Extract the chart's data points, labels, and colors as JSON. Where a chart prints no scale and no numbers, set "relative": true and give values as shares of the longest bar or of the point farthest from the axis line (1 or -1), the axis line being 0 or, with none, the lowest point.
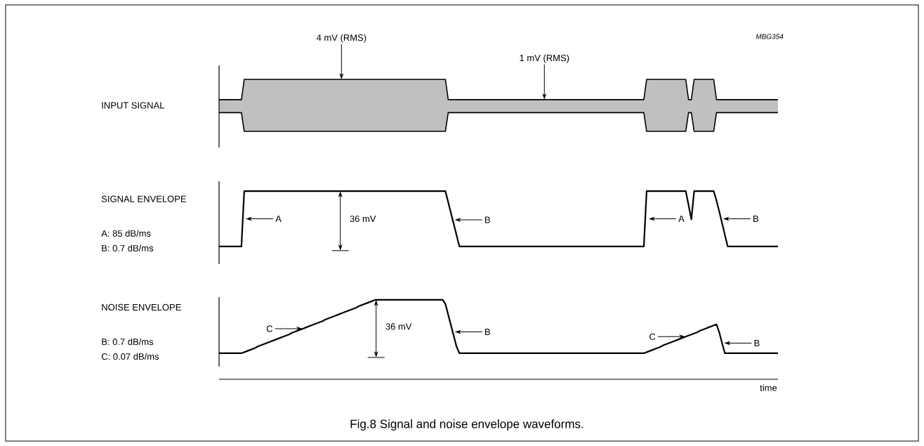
{
  "chart_data": [
    {
      "type": "area",
      "subtitle": "MBG354",
      "ylabel": "INPUT SIGNAL",
      "relative": true,
      "tick_labels": false,
      "categories": [
        null,
        null,
        null,
        null,
        null,
        null,
        null,
        null,
        null,
        null,
        null,
        null,
        null,
        null,
        null,
        null,
        null,
        null,
        null,
        null,
        null,
        null,
        null,
        null,
        null,
        null,
        null,
        null,
        null,
        null,
        null,
        null,
        null,
        null,
        null,
        null,
        null,
        null,
        null,
        null,
        null,
        null,
        null,
        null,
        null,
        null,
        null,
        null,
        null,
        null,
        null,
        null,
        null,
        null,
        null,
        null,
        null,
        null,
        null,
        null,
        null,
        null,
        null,
        null,
        null,
        null,
        null,
        null,
        null,
        null,
        null,
        null,
        null,
        null,
        null,
        null,
        null,
        null,
        null,
        null,
        null,
        null,
        null,
        null,
        null,
        null,
        null,
        null,
        null,
        null,
        null,
        null,
        null,
        null,
        null,
        null,
        null,
        null,
        null,
        null,
        null,
        null,
        null,
        null,
        null,
        null,
        null,
        null,
        null,
        null,
        null,
        null,
        null,
        null,
        null,
        null,
        null,
        null,
        null,
        null,
        null,
        null,
        null,
        null,
        null,
        null,
        null,
        null,
        null,
        null,
        null,
        null,
        null,
        null,
        null,
        null,
        null,
        null,
        null,
        null,
        null,
        null,
        null,
        null,
        null,
        null,
        null,
        null,
        null,
        null,
        null,
        null,
        null,
        null,
        null,
        null,
        null,
        null,
        null,
        null,
        null,
        null,
        null,
        null,
        null,
        null,
        null,
        null,
        null,
        null,
        null,
        null,
        null,
        null,
        null,
        null,
        null,
        null,
        null,
        null,
        null,
        null,
        null,
        null,
        null,
        null,
        null,
        null,
        null,
        null,
        null,
        null,
        null,
        null,
        null,
        null,
        null,
        null,
        null,
        null,
        null
      ],
      "series": [
        {
          "color": "#c0c0c0",
          "values": [
            0.61,
            0.61,
            0.61,
            0.61,
            0.61,
            0.61,
            0.61,
            0.61,
            0.61,
            1,
            1,
            1,
            1,
            1,
            1,
            1,
            1,
            1,
            1,
            1,
            1,
            1,
            1,
            1,
            1,
            1,
            1,
            1,
            1,
            1,
            1,
            1,
            1,
            1,
            1,
            1,
            1,
            1,
            1,
            1,
            1,
            1,
            1,
            1,
            1,
            1,
            1,
            1,
            1,
            1,
            1,
            1,
            1,
            1,
            1,
            1,
            1,
            1,
            1,
            1,
            1,
            1,
            1,
            1,
            1,
            1,
            1,
            1,
            1,
            1,
            1,
            1,
            1,
            1,
            1,
            1,
            1,
            1,
            1,
            1,
            1,
            1,
            0.61,
            0.61,
            0.61,
            0.61,
            0.61,
            0.61,
            0.61,
            0.61,
            0.61,
            0.61,
            0.61,
            0.61,
            0.61,
            0.61,
            0.61,
            0.61,
            0.61,
            0.61,
            0.61,
            0.61,
            0.61,
            0.61,
            0.61,
            0.61,
            0.61,
            0.61,
            0.61,
            0.61,
            0.61,
            0.61,
            0.61,
            0.61,
            0.61,
            0.61,
            0.61,
            0.61,
            0.61,
            0.61,
            0.61,
            0.61,
            0.61,
            0.61,
            0.61,
            0.61,
            0.61,
            0.61,
            0.61,
            0.61,
            0.61,
            0.61,
            0.61,
            0.61,
            0.61,
            0.61,
            0.61,
            0.61,
            0.61,
            0.61,
            0.61,
            0.61,
            0.61,
            0.61,
            0.61,
            0.61,
            0.61,
            0.61,
            0.61,
            0.61,
            0.61,
            0.61,
            0.61,
            1,
            1,
            1,
            1,
            1,
            1,
            1,
            1,
            1,
            1,
            1,
            1,
            1,
            1,
            1,
            0.61,
            0.61,
            1,
            1,
            1,
            1,
            1,
            1,
            1,
            1,
            0.61,
            0.61,
            0.61,
            0.61,
            0.61,
            0.61,
            0.61,
            0.61,
            0.61,
            0.61,
            0.61,
            0.61,
            0.61,
            0.61,
            0.61,
            0.61,
            0.61,
            0.61,
            0.61,
            0.61,
            0.61,
            0.61,
            0.61
          ]
        },
        {
          "color": "#ffffff",
          "values": [
            0.36,
            0.36,
            0.36,
            0.36,
            0.36,
            0.36,
            0.36,
            0.36,
            0.36,
            0,
            0,
            0,
            0,
            0,
            0,
            0,
            0,
            0,
            0,
            0,
            0,
            0,
            0,
            0,
            0,
            0,
            0,
            0,
            0,
            0,
            0,
            0,
            0,
            0,
            0,
            0,
            0,
            0,
            0,
            0,
            0,
            0,
            0,
            0,
            0,
            0,
            0,
            0,
            0,
            0,
            0,
            0,
            0,
            0,
            0,
            0,
            0,
            0,
            0,
            0,
            0,
            0,
            0,
            0,
            0,
            0,
            0,
            0,
            0,
            0,
            0,
            0,
            0,
            0,
            0,
            0,
            0,
            0,
            0,
            0,
            0,
            0,
            0.36,
            0.36,
            0.36,
            0.36,
            0.36,
            0.36,
            0.36,
            0.36,
            0.36,
            0.36,
            0.36,
            0.36,
            0.36,
            0.36,
            0.36,
            0.36,
            0.36,
            0.36,
            0.36,
            0.36,
            0.36,
            0.36,
            0.36,
            0.36,
            0.36,
            0.36,
            0.36,
            0.36,
            0.36,
            0.36,
            0.36,
            0.36,
            0.36,
            0.36,
            0.36,
            0.36,
            0.36,
            0.36,
            0.36,
            0.36,
            0.36,
            0.36,
            0.36,
            0.36,
            0.36,
            0.36,
            0.36,
            0.36,
            0.36,
            0.36,
            0.36,
            0.36,
            0.36,
            0.36,
            0.36,
            0.36,
            0.36,
            0.36,
            0.36,
            0.36,
            0.36,
            0.36,
            0.36,
            0.36,
            0.36,
            0.36,
            0.36,
            0.36,
            0.36,
            0.36,
            0.36,
            0,
            0,
            0,
            0,
            0,
            0,
            0,
            0,
            0,
            0,
            0,
            0,
            0,
            0,
            0,
            0.36,
            0.36,
            0,
            0,
            0,
            0,
            0,
            0,
            0,
            0,
            0.36,
            0.36,
            0.36,
            0.36,
            0.36,
            0.36,
            0.36,
            0.36,
            0.36,
            0.36,
            0.36,
            0.36,
            0.36,
            0.36,
            0.36,
            0.36,
            0.36,
            0.36,
            0.36,
            0.36,
            0.36,
            0.36,
            0.36
          ]
        }
      ],
      "annotations": [
        "4 mV (RMS)",
        "1 mV (RMS)"
      ]
    },
    {
      "type": "line",
      "ylabel": "SIGNAL ENVELOPE",
      "relative": true,
      "tick_labels": false,
      "categories": [
        null,
        null,
        null,
        null,
        null,
        null,
        null,
        null,
        null,
        null,
        null,
        null,
        null,
        null,
        null,
        null,
        null,
        null,
        null,
        null,
        null,
        null,
        null,
        null,
        null,
        null,
        null,
        null,
        null,
        null,
        null,
        null,
        null,
        null,
        null,
        null,
        null,
        null,
        null,
        null,
        null,
        null,
        null,
        null,
        null,
        null,
        null,
        null,
        null,
        null,
        null,
        null,
        null,
        null,
        null,
        null,
        null,
        null,
        null,
        null,
        null,
        null,
        null,
        null,
        null,
        null,
        null,
        null,
        null,
        null,
        null,
        null,
        null,
        null,
        null,
        null,
        null,
        null,
        null,
        null,
        null,
        null,
        null,
        null,
        null,
        null,
        null,
        null,
        null,
        null,
        null,
        null,
        null,
        null,
        null,
        null,
        null,
        null,
        null,
        null,
        null,
        null,
        null,
        null,
        null,
        null,
        null,
        null,
        null,
        null,
        null,
        null,
        null,
        null,
        null,
        null,
        null,
        null,
        null,
        null,
        null,
        null,
        null,
        null,
        null,
        null,
        null,
        null,
        null,
        null,
        null,
        null,
        null,
        null,
        null,
        null,
        null,
        null,
        null,
        null,
        null,
        null,
        null,
        null,
        null,
        null,
        null,
        null,
        null,
        null,
        null,
        null,
        null,
        null,
        null,
        null,
        null,
        null,
        null,
        null,
        null,
        null,
        null,
        null,
        null,
        null,
        null,
        null,
        null,
        null,
        null,
        null,
        null,
        null,
        null,
        null,
        null,
        null,
        null,
        null,
        null,
        null,
        null,
        null,
        null,
        null,
        null,
        null,
        null,
        null,
        null,
        null,
        null,
        null,
        null,
        null,
        null,
        null,
        null,
        null,
        null
      ],
      "series": [
        {
          "color": "#000000",
          "values": [
            0,
            0,
            0,
            0,
            0,
            0,
            0,
            0,
            0,
            1,
            1,
            1,
            1,
            1,
            1,
            1,
            1,
            1,
            1,
            1,
            1,
            1,
            1,
            1,
            1,
            1,
            1,
            1,
            1,
            1,
            1,
            1,
            1,
            1,
            1,
            1,
            1,
            1,
            1,
            1,
            1,
            1,
            1,
            1,
            1,
            1,
            1,
            1,
            1,
            1,
            1,
            1,
            1,
            1,
            1,
            1,
            1,
            1,
            1,
            1,
            1,
            1,
            1,
            1,
            1,
            1,
            1,
            1,
            1,
            1,
            1,
            1,
            1,
            1,
            1,
            1,
            1,
            1,
            1,
            1,
            1,
            1,
            0.8,
            0.6,
            0.4,
            0.2,
            0,
            0,
            0,
            0,
            0,
            0,
            0,
            0,
            0,
            0,
            0,
            0,
            0,
            0,
            0,
            0,
            0,
            0,
            0,
            0,
            0,
            0,
            0,
            0,
            0,
            0,
            0,
            0,
            0,
            0,
            0,
            0,
            0,
            0,
            0,
            0,
            0,
            0,
            0,
            0,
            0,
            0,
            0,
            0,
            0,
            0,
            0,
            0,
            0,
            0,
            0,
            0,
            0,
            0,
            0,
            0,
            0,
            0,
            0,
            0,
            0,
            0,
            0,
            0,
            0,
            0,
            0,
            1,
            1,
            1,
            1,
            1,
            1,
            1,
            1,
            1,
            1,
            1,
            1,
            1,
            1,
            1,
            0.75,
            0.49,
            1,
            1,
            1,
            1,
            1,
            1,
            1,
            1,
            0.83,
            0.63,
            0.42,
            0.21,
            0,
            0,
            0,
            0,
            0,
            0,
            0,
            0,
            0,
            0,
            0,
            0,
            0,
            0,
            0,
            0,
            0,
            0,
            0
          ]
        }
      ],
      "annotations": [
        "A: 85 dB/ms",
        "B: 0.7 dB/ms",
        "A",
        "36 mV",
        "B",
        "A",
        "B"
      ]
    },
    {
      "type": "line",
      "title": "Fig.8  Signal and noise envelope waveforms.",
      "ylabel": "NOISE ENVELOPE",
      "xlabel": "time",
      "relative": true,
      "tick_labels": false,
      "categories": [
        null,
        null,
        null,
        null,
        null,
        null,
        null,
        null,
        null,
        null,
        null,
        null,
        null,
        null,
        null,
        null,
        null,
        null,
        null,
        null,
        null,
        null,
        null,
        null,
        null,
        null,
        null,
        null,
        null,
        null,
        null,
        null,
        null,
        null,
        null,
        null,
        null,
        null,
        null,
        null,
        null,
        null,
        null,
        null,
        null,
        null,
        null,
        null,
        null,
        null,
        null,
        null,
        null,
        null,
        null,
        null,
        null,
        null,
        null,
        null,
        null,
        null,
        null,
        null,
        null,
        null,
        null,
        null,
        null,
        null,
        null,
        null,
        null,
        null,
        null,
        null,
        null,
        null,
        null,
        null,
        null,
        null,
        null,
        null,
        null,
        null,
        null,
        null,
        null,
        null,
        null,
        null,
        null,
        null,
        null,
        null,
        null,
        null,
        null,
        null,
        null,
        null,
        null,
        null,
        null,
        null,
        null,
        null,
        null,
        null,
        null,
        null,
        null,
        null,
        null,
        null,
        null,
        null,
        null,
        null,
        null,
        null,
        null,
        null,
        null,
        null,
        null,
        null,
        null,
        null,
        null,
        null,
        null,
        null,
        null,
        null,
        null,
        null,
        null,
        null,
        null,
        null,
        null,
        null,
        null,
        null,
        null,
        null,
        null,
        null,
        null,
        null,
        null,
        null,
        null,
        null,
        null,
        null,
        null,
        null,
        null,
        null,
        null,
        null,
        null,
        null,
        null,
        null,
        null,
        null,
        null,
        null,
        null,
        null,
        null,
        null,
        null,
        null,
        null,
        null,
        null,
        null,
        null,
        null,
        null,
        null,
        null,
        null,
        null,
        null,
        null,
        null,
        null,
        null,
        null,
        null,
        null,
        null,
        null,
        null,
        null
      ],
      "series": [
        {
          "color": "#000000",
          "values": [
            0,
            0,
            0,
            0,
            0,
            0,
            0,
            0,
            0,
            0.02,
            0.04,
            0.06,
            0.08,
            0.1,
            0.13,
            0.15,
            0.17,
            0.19,
            0.21,
            0.23,
            0.25,
            0.27,
            0.29,
            0.31,
            0.33,
            0.35,
            0.38,
            0.4,
            0.42,
            0.44,
            0.46,
            0.48,
            0.5,
            0.52,
            0.54,
            0.56,
            0.58,
            0.6,
            0.63,
            0.65,
            0.67,
            0.69,
            0.71,
            0.73,
            0.75,
            0.77,
            0.79,
            0.81,
            0.83,
            0.85,
            0.88,
            0.9,
            0.92,
            0.94,
            0.96,
            0.98,
            1,
            1,
            1,
            1,
            1,
            1,
            1,
            1,
            1,
            1,
            1,
            1,
            1,
            1,
            1,
            1,
            1,
            1,
            1,
            1,
            1,
            1,
            1,
            1,
            1,
            0.92,
            0.72,
            0.52,
            0.32,
            0.12,
            0,
            0,
            0,
            0,
            0,
            0,
            0,
            0,
            0,
            0,
            0,
            0,
            0,
            0,
            0,
            0,
            0,
            0,
            0,
            0,
            0,
            0,
            0,
            0,
            0,
            0,
            0,
            0,
            0,
            0,
            0,
            0,
            0,
            0,
            0,
            0,
            0,
            0,
            0,
            0,
            0,
            0,
            0,
            0,
            0,
            0,
            0,
            0,
            0,
            0,
            0,
            0,
            0,
            0,
            0,
            0,
            0,
            0,
            0,
            0,
            0,
            0,
            0,
            0,
            0,
            0,
            0,
            0.02,
            0.04,
            0.06,
            0.08,
            0.1,
            0.12,
            0.15,
            0.17,
            0.19,
            0.21,
            0.23,
            0.25,
            0.27,
            0.29,
            0.31,
            0.33,
            0.35,
            0.37,
            0.39,
            0.42,
            0.44,
            0.46,
            0.48,
            0.5,
            0.52,
            0.54,
            0.39,
            0.19,
            0,
            0,
            0,
            0,
            0,
            0,
            0,
            0,
            0,
            0,
            0,
            0,
            0,
            0,
            0,
            0,
            0,
            0,
            0,
            0
          ]
        }
      ],
      "annotations": [
        "B: 0.7 dB/ms",
        "C: 0.07 dB/ms",
        "C",
        "36 mV",
        "B",
        "C",
        "B"
      ]
    }
  ]
}
